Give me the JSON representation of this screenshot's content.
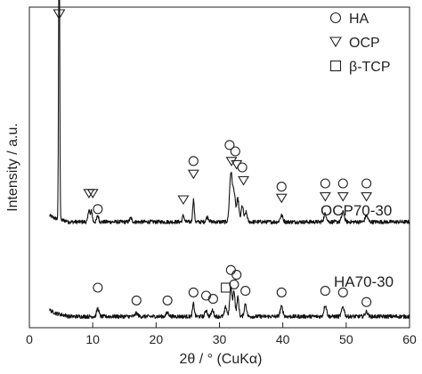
{
  "chart_data": {
    "type": "line",
    "xlabel": "2θ / ° (CuKα)",
    "ylabel": "Intensity / a.u.",
    "xlim": [
      0,
      60
    ],
    "xticks": [
      0,
      10,
      20,
      30,
      40,
      50,
      60
    ],
    "y_ticks_shown": false,
    "legend": {
      "placement": "top-right",
      "entries": [
        {
          "symbol": "circle",
          "label": "HA"
        },
        {
          "symbol": "triangle-down",
          "label": "OCP"
        },
        {
          "symbol": "square",
          "label": "β-TCP"
        }
      ]
    },
    "series": [
      {
        "name": "OCP70-30",
        "baseline": 0.33,
        "x_start": 3.2,
        "x_end": 60,
        "peaks": [
          {
            "x": 4.7,
            "h": 0.95,
            "w": 0.12
          },
          {
            "x": 9.4,
            "h": 0.04,
            "w": 0.18
          },
          {
            "x": 9.8,
            "h": 0.035,
            "w": 0.18
          },
          {
            "x": 10.8,
            "h": 0.02,
            "w": 0.2
          },
          {
            "x": 16.0,
            "h": 0.012,
            "w": 0.25
          },
          {
            "x": 24.3,
            "h": 0.02,
            "w": 0.2
          },
          {
            "x": 25.9,
            "h": 0.07,
            "w": 0.18
          },
          {
            "x": 28.1,
            "h": 0.015,
            "w": 0.3
          },
          {
            "x": 31.8,
            "h": 0.15,
            "w": 0.3
          },
          {
            "x": 32.3,
            "h": 0.09,
            "w": 0.3
          },
          {
            "x": 32.9,
            "h": 0.07,
            "w": 0.25
          },
          {
            "x": 33.6,
            "h": 0.05,
            "w": 0.25
          },
          {
            "x": 34.2,
            "h": 0.03,
            "w": 0.25
          },
          {
            "x": 39.8,
            "h": 0.02,
            "w": 0.3
          },
          {
            "x": 46.7,
            "h": 0.025,
            "w": 0.3
          },
          {
            "x": 49.5,
            "h": 0.03,
            "w": 0.3
          },
          {
            "x": 53.2,
            "h": 0.02,
            "w": 0.3
          }
        ],
        "markers": [
          {
            "x": 9.4,
            "symbol": "triangle-down",
            "yoff": 0.09
          },
          {
            "x": 10.0,
            "symbol": "triangle-down",
            "yoff": 0.09
          },
          {
            "x": 10.8,
            "symbol": "circle",
            "yoff": 0.04
          },
          {
            "x": 24.3,
            "symbol": "triangle-down",
            "yoff": 0.07
          },
          {
            "x": 25.9,
            "symbol": "circle",
            "yoff": 0.19
          },
          {
            "x": 25.9,
            "symbol": "triangle-down",
            "yoff": 0.15
          },
          {
            "x": 31.6,
            "symbol": "circle",
            "yoff": 0.24
          },
          {
            "x": 32.5,
            "symbol": "circle",
            "yoff": 0.22
          },
          {
            "x": 31.9,
            "symbol": "triangle-down",
            "yoff": 0.19
          },
          {
            "x": 32.7,
            "symbol": "triangle-down",
            "yoff": 0.18
          },
          {
            "x": 33.6,
            "symbol": "circle",
            "yoff": 0.17
          },
          {
            "x": 33.8,
            "symbol": "triangle-down",
            "yoff": 0.13
          },
          {
            "x": 39.8,
            "symbol": "circle",
            "yoff": 0.11
          },
          {
            "x": 39.8,
            "symbol": "triangle-down",
            "yoff": 0.075
          },
          {
            "x": 46.7,
            "symbol": "circle",
            "yoff": 0.12
          },
          {
            "x": 46.7,
            "symbol": "triangle-down",
            "yoff": 0.08
          },
          {
            "x": 49.5,
            "symbol": "circle",
            "yoff": 0.12
          },
          {
            "x": 49.5,
            "symbol": "triangle-down",
            "yoff": 0.08
          },
          {
            "x": 53.2,
            "symbol": "circle",
            "yoff": 0.12
          },
          {
            "x": 53.2,
            "symbol": "triangle-down",
            "yoff": 0.08
          }
        ]
      },
      {
        "name": "HA70-30",
        "baseline": 0.035,
        "x_start": 3.2,
        "x_end": 60,
        "peaks": [
          {
            "x": 10.8,
            "h": 0.025,
            "w": 0.25
          },
          {
            "x": 16.9,
            "h": 0.01,
            "w": 0.3
          },
          {
            "x": 21.8,
            "h": 0.012,
            "w": 0.3
          },
          {
            "x": 25.9,
            "h": 0.04,
            "w": 0.2
          },
          {
            "x": 27.9,
            "h": 0.02,
            "w": 0.25
          },
          {
            "x": 28.9,
            "h": 0.02,
            "w": 0.25
          },
          {
            "x": 31.0,
            "h": 0.03,
            "w": 0.25
          },
          {
            "x": 31.8,
            "h": 0.09,
            "w": 0.25
          },
          {
            "x": 32.3,
            "h": 0.08,
            "w": 0.22
          },
          {
            "x": 32.9,
            "h": 0.06,
            "w": 0.22
          },
          {
            "x": 34.1,
            "h": 0.04,
            "w": 0.25
          },
          {
            "x": 39.8,
            "h": 0.03,
            "w": 0.3
          },
          {
            "x": 46.7,
            "h": 0.035,
            "w": 0.3
          },
          {
            "x": 49.5,
            "h": 0.03,
            "w": 0.3
          },
          {
            "x": 53.2,
            "h": 0.015,
            "w": 0.3
          }
        ],
        "markers": [
          {
            "x": 10.8,
            "symbol": "circle",
            "yoff": 0.09
          },
          {
            "x": 16.9,
            "symbol": "circle",
            "yoff": 0.05
          },
          {
            "x": 21.8,
            "symbol": "circle",
            "yoff": 0.05
          },
          {
            "x": 25.9,
            "symbol": "circle",
            "yoff": 0.075
          },
          {
            "x": 27.9,
            "symbol": "circle",
            "yoff": 0.065
          },
          {
            "x": 29.0,
            "symbol": "circle",
            "yoff": 0.055
          },
          {
            "x": 31.0,
            "symbol": "square",
            "yoff": 0.09
          },
          {
            "x": 31.8,
            "symbol": "circle",
            "yoff": 0.145
          },
          {
            "x": 32.7,
            "symbol": "circle",
            "yoff": 0.13
          },
          {
            "x": 32.3,
            "symbol": "circle",
            "yoff": 0.1
          },
          {
            "x": 34.1,
            "symbol": "circle",
            "yoff": 0.08
          },
          {
            "x": 39.8,
            "symbol": "circle",
            "yoff": 0.075
          },
          {
            "x": 46.7,
            "symbol": "circle",
            "yoff": 0.08
          },
          {
            "x": 49.5,
            "symbol": "circle",
            "yoff": 0.075
          },
          {
            "x": 53.2,
            "symbol": "circle",
            "yoff": 0.045
          }
        ]
      }
    ]
  }
}
